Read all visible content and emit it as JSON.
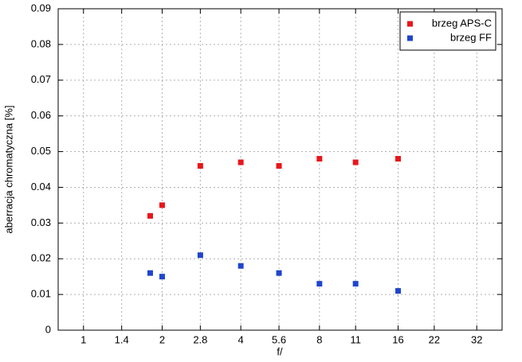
{
  "chart_data": {
    "type": "scatter",
    "xlabel": "f/",
    "ylabel": "aberracja chromatyczna [%]",
    "x": [
      1.8,
      2,
      2.8,
      4,
      5.6,
      8,
      11,
      16
    ],
    "series": [
      {
        "name": "brzeg APS-C",
        "color": "#e8161b",
        "values": [
          0.032,
          0.035,
          0.046,
          0.047,
          0.046,
          0.048,
          0.047,
          0.048
        ]
      },
      {
        "name": "brzeg FF",
        "color": "#1f45cc",
        "values": [
          0.016,
          0.015,
          0.021,
          0.018,
          0.016,
          0.013,
          0.013,
          0.011
        ]
      }
    ],
    "xscale": "log",
    "xlim": [
      0.8,
      40
    ],
    "xticks": [
      1,
      1.4,
      2,
      2.8,
      4,
      5.6,
      8,
      11,
      16,
      22,
      32
    ],
    "ylim": [
      0,
      0.09
    ],
    "yticks": [
      0,
      0.01,
      0.02,
      0.03,
      0.04,
      0.05,
      0.06,
      0.07,
      0.08,
      0.09
    ],
    "grid": true,
    "legend": "upper right"
  }
}
